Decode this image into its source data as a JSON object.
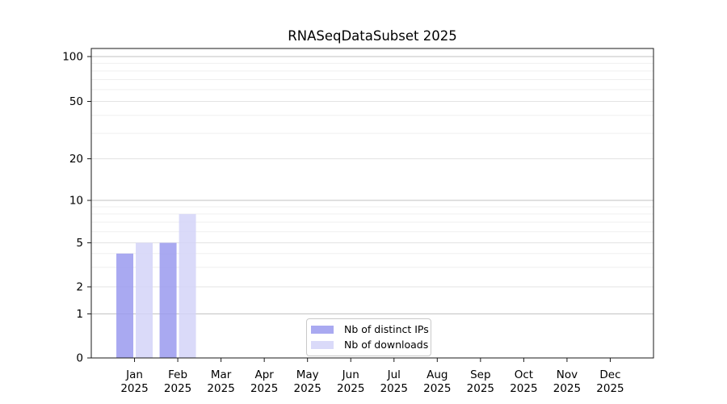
{
  "chart_data": {
    "type": "bar",
    "title": "RNASeqDataSubset 2025",
    "categories": [
      "Jan 2025",
      "Feb 2025",
      "Mar 2025",
      "Apr 2025",
      "May 2025",
      "Jun 2025",
      "Jul 2025",
      "Aug 2025",
      "Sep 2025",
      "Oct 2025",
      "Nov 2025",
      "Dec 2025"
    ],
    "series": [
      {
        "name": "Nb of distinct IPs",
        "color": "#9a9aef",
        "values": [
          4,
          5,
          0,
          0,
          0,
          0,
          0,
          0,
          0,
          0,
          0,
          0
        ]
      },
      {
        "name": "Nb of downloads",
        "color": "#d4d4f8",
        "values": [
          5,
          8,
          0,
          0,
          0,
          0,
          0,
          0,
          0,
          0,
          0,
          0
        ]
      }
    ],
    "yticks": [
      0,
      1,
      2,
      5,
      10,
      20,
      50,
      100
    ],
    "ylim": [
      0,
      100
    ],
    "yscale": "log-like",
    "grid": true,
    "legend_position": "bottom-center"
  }
}
